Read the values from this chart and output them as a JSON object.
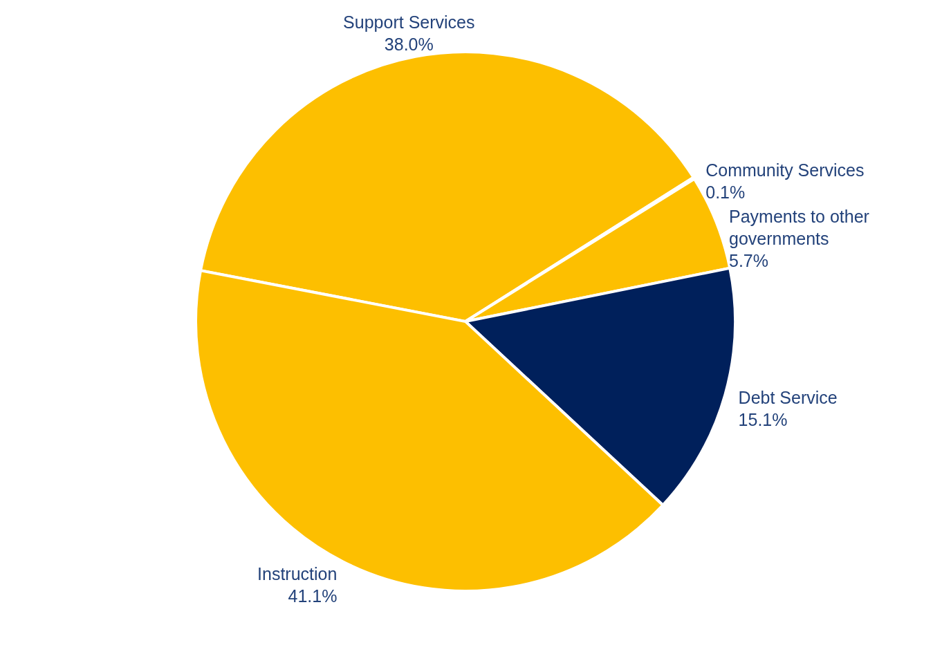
{
  "chart_data": {
    "type": "pie",
    "categories": [
      "Support Services",
      "Community Services",
      "Payments to other governments",
      "Debt Service",
      "Instruction"
    ],
    "values": [
      38.0,
      0.1,
      5.7,
      15.1,
      41.1
    ],
    "value_labels": [
      "38.0%",
      "0.1%",
      "5.7%",
      "15.1%",
      "41.1%"
    ],
    "colors": [
      "#fdbf00",
      "#00205b",
      "#fdbf00",
      "#00205b",
      "#fdbf00"
    ],
    "legend": false
  }
}
